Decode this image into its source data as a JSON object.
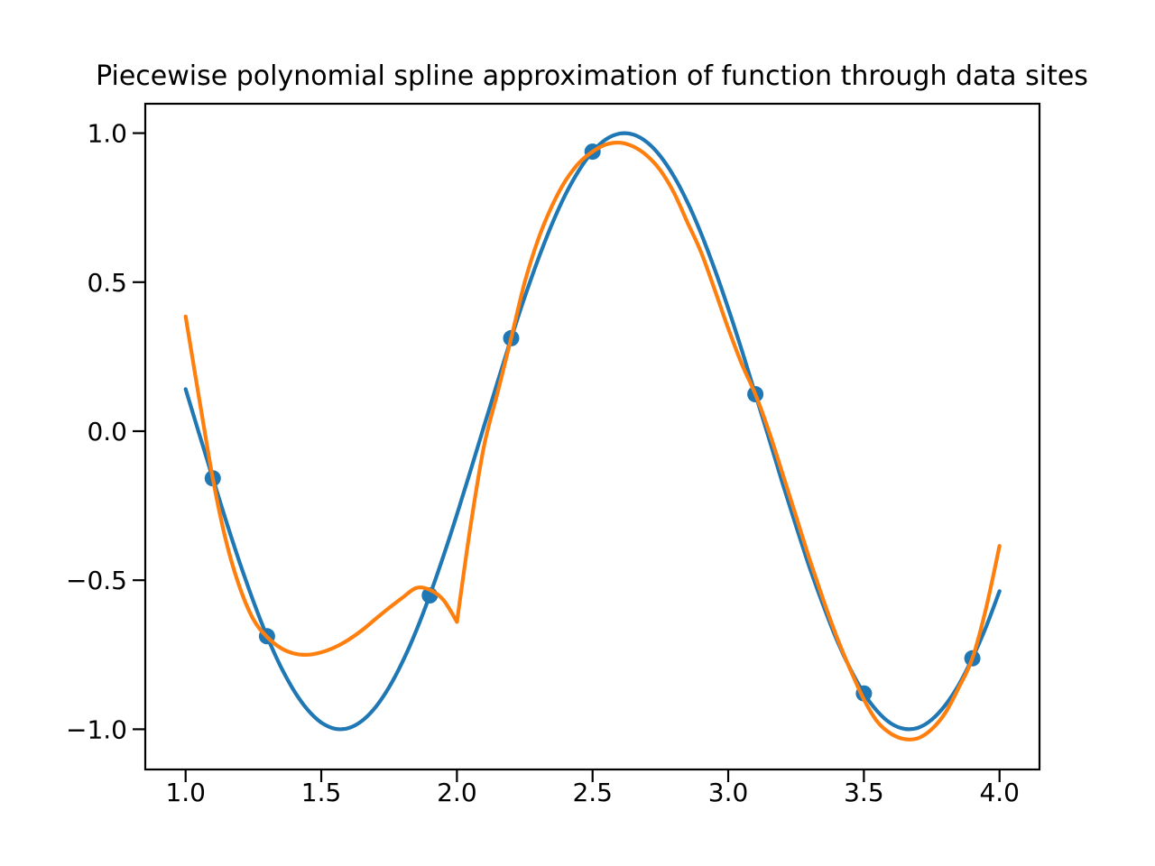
{
  "figure": {
    "background": "#ffffff"
  },
  "chart_data": {
    "type": "line",
    "title": "Piecewise polynomial spline approximation of function through data sites",
    "xlabel": "",
    "ylabel": "",
    "grid": false,
    "legend_position": "none",
    "background": "#ffffff",
    "axis_color": "#000000",
    "xlim": [
      0.8513,
      4.1473
    ],
    "ylim": [
      -1.135,
      1.0986
    ],
    "xticks": {
      "values": [
        1.0,
        1.5,
        2.0,
        2.5,
        3.0,
        3.5,
        4.0
      ],
      "labels": [
        "1.0",
        "1.5",
        "2.0",
        "2.5",
        "3.0",
        "3.5",
        "4.0"
      ]
    },
    "yticks": {
      "values": [
        1.0,
        0.5,
        0.0,
        -0.5,
        -1.0
      ],
      "labels": [
        "1.0",
        "0.5",
        "0.0",
        "−0.5",
        "−1.0"
      ]
    },
    "series": [
      {
        "name": "true-function-curve",
        "type": "line",
        "color": "#1f77b4",
        "line_width": 4.2,
        "x": [
          1.0,
          1.05,
          1.1,
          1.15,
          1.2,
          1.25,
          1.3,
          1.35,
          1.4,
          1.45,
          1.5,
          1.55,
          1.6,
          1.65,
          1.7,
          1.75,
          1.8,
          1.85,
          1.9,
          1.95,
          2.0,
          2.05,
          2.1,
          2.15,
          2.2,
          2.25,
          2.3,
          2.35,
          2.4,
          2.45,
          2.5,
          2.55,
          2.6,
          2.65,
          2.7,
          2.75,
          2.8,
          2.85,
          2.9,
          2.95,
          3.0,
          3.05,
          3.1,
          3.15,
          3.2,
          3.25,
          3.3,
          3.35,
          3.4,
          3.45,
          3.5,
          3.55,
          3.6,
          3.65,
          3.7,
          3.75,
          3.8,
          3.85,
          3.9,
          3.95,
          4.0
        ],
        "y": [
          0.1411,
          -0.0084,
          -0.1578,
          -0.3036,
          -0.4425,
          -0.5716,
          -0.6878,
          -0.7887,
          -0.8716,
          -0.9348,
          -0.9775,
          -0.9981,
          -0.9962,
          -0.9718,
          -0.9258,
          -0.859,
          -0.7728,
          -0.6693,
          -0.5507,
          -0.4198,
          -0.2794,
          -0.1328,
          0.0168,
          0.166,
          0.3115,
          0.45,
          0.5784,
          0.6938,
          0.7937,
          0.8755,
          0.938,
          0.9794,
          0.9985,
          0.9954,
          0.9699,
          0.9225,
          0.8546,
          0.7677,
          0.663,
          0.5436,
          0.4121,
          0.2713,
          0.1244,
          -0.0236,
          -0.1743,
          -0.318,
          -0.4575,
          -0.5839,
          -0.6999,
          -0.7978,
          -0.8797,
          -0.9401,
          -0.9806,
          -0.9989,
          -0.995,
          -0.9679,
          -0.9191,
          -0.8506,
          -0.7618,
          -0.657,
          -0.5366
        ]
      },
      {
        "name": "spline-curve",
        "type": "line",
        "color": "#ff7f0e",
        "line_width": 4.2,
        "break_x": 2.0,
        "segments": [
          {
            "x": [
              1.0,
              1.05,
              1.1,
              1.15,
              1.2,
              1.25,
              1.3,
              1.35,
              1.4,
              1.45,
              1.5,
              1.55,
              1.6,
              1.65,
              1.7,
              1.75,
              1.8,
              1.85,
              1.9,
              1.95,
              2.0
            ],
            "y": [
              0.385,
              0.11,
              -0.158,
              -0.372,
              -0.525,
              -0.632,
              -0.69,
              -0.727,
              -0.746,
              -0.75,
              -0.742,
              -0.725,
              -0.7,
              -0.668,
              -0.63,
              -0.593,
              -0.558,
              -0.526,
              -0.532,
              -0.566,
              -0.64
            ]
          },
          {
            "x": [
              2.0,
              2.05,
              2.1,
              2.15,
              2.2,
              2.25,
              2.3,
              2.35,
              2.4,
              2.45,
              2.5,
              2.55,
              2.6,
              2.65,
              2.7,
              2.75,
              2.8,
              2.85,
              2.9,
              2.95,
              3.0,
              3.05,
              3.1,
              3.15,
              3.2,
              3.25,
              3.3,
              3.35,
              3.4,
              3.45,
              3.5,
              3.55,
              3.6,
              3.65,
              3.7,
              3.75,
              3.8,
              3.85,
              3.9,
              3.95,
              4.0
            ],
            "y": [
              -0.64,
              -0.32,
              -0.05,
              0.13,
              0.312,
              0.5,
              0.645,
              0.755,
              0.84,
              0.9,
              0.938,
              0.962,
              0.968,
              0.955,
              0.925,
              0.875,
              0.8,
              0.7,
              0.6,
              0.475,
              0.345,
              0.225,
              0.124,
              0.0,
              -0.142,
              -0.285,
              -0.43,
              -0.565,
              -0.69,
              -0.8,
              -0.9,
              -0.975,
              -1.015,
              -1.033,
              -1.03,
              -1.0,
              -0.945,
              -0.86,
              -0.762,
              -0.595,
              -0.385
            ]
          }
        ]
      },
      {
        "name": "data-sites",
        "type": "scatter",
        "color": "#1f77b4",
        "marker_radius": 9,
        "x": [
          1.1,
          1.3,
          1.9,
          2.2,
          2.5,
          3.1,
          3.5,
          3.9
        ],
        "y": [
          -0.158,
          -0.688,
          -0.551,
          0.312,
          0.938,
          0.124,
          -0.88,
          -0.762
        ]
      }
    ]
  }
}
